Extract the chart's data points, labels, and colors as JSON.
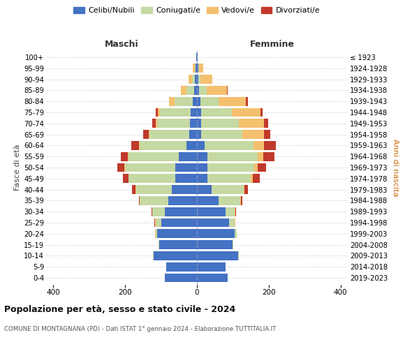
{
  "age_groups": [
    "0-4",
    "5-9",
    "10-14",
    "15-19",
    "20-24",
    "25-29",
    "30-34",
    "35-39",
    "40-44",
    "45-49",
    "50-54",
    "55-59",
    "60-64",
    "65-69",
    "70-74",
    "75-79",
    "80-84",
    "85-89",
    "90-94",
    "95-99",
    "100+"
  ],
  "birth_years": [
    "2019-2023",
    "2014-2018",
    "2009-2013",
    "2004-2008",
    "1999-2003",
    "1994-1998",
    "1989-1993",
    "1984-1988",
    "1979-1983",
    "1974-1978",
    "1969-1973",
    "1964-1968",
    "1959-1963",
    "1954-1958",
    "1949-1953",
    "1944-1948",
    "1939-1943",
    "1934-1938",
    "1929-1933",
    "1924-1928",
    "≤ 1923"
  ],
  "colors": {
    "celibi": "#4472c4",
    "coniugati": "#c5d9a3",
    "vedovi": "#f5c06e",
    "divorziati": "#c0392b"
  },
  "males": {
    "celibi": [
      90,
      85,
      120,
      105,
      110,
      100,
      90,
      80,
      70,
      60,
      60,
      50,
      30,
      22,
      20,
      18,
      12,
      7,
      5,
      3,
      1
    ],
    "coniugati": [
      0,
      0,
      2,
      2,
      5,
      15,
      35,
      80,
      100,
      130,
      140,
      140,
      130,
      110,
      90,
      85,
      50,
      22,
      8,
      3,
      0
    ],
    "vedovi": [
      0,
      0,
      0,
      0,
      1,
      1,
      0,
      0,
      1,
      1,
      2,
      2,
      2,
      3,
      5,
      6,
      16,
      15,
      10,
      5,
      1
    ],
    "divorziati": [
      0,
      0,
      0,
      0,
      0,
      2,
      2,
      2,
      10,
      15,
      20,
      20,
      20,
      15,
      10,
      6,
      0,
      0,
      0,
      0,
      0
    ]
  },
  "females": {
    "nubili": [
      85,
      80,
      115,
      100,
      105,
      90,
      80,
      60,
      40,
      30,
      30,
      30,
      22,
      12,
      12,
      12,
      9,
      6,
      4,
      3,
      1
    ],
    "coniugate": [
      0,
      0,
      2,
      2,
      5,
      15,
      25,
      60,
      90,
      120,
      130,
      140,
      135,
      115,
      105,
      85,
      52,
      22,
      6,
      2,
      0
    ],
    "vedove": [
      0,
      0,
      0,
      0,
      1,
      1,
      1,
      2,
      2,
      5,
      10,
      15,
      30,
      60,
      70,
      80,
      75,
      55,
      32,
      12,
      1
    ],
    "divorziate": [
      0,
      0,
      0,
      0,
      0,
      1,
      2,
      5,
      10,
      20,
      22,
      30,
      32,
      18,
      12,
      5,
      5,
      3,
      0,
      0,
      0
    ]
  },
  "title": "Popolazione per età, sesso e stato civile - 2024",
  "subtitle": "COMUNE DI MONTAGNANA (PD) - Dati ISTAT 1° gennaio 2024 - Elaborazione TUTTITALIA.IT",
  "header_left": "Maschi",
  "header_right": "Femmine",
  "ylabel_left": "Fasce di età",
  "ylabel_right": "Anni di nascita",
  "xlim": 420,
  "legend_labels": [
    "Celibi/Nubili",
    "Coniugati/e",
    "Vedovi/e",
    "Divorziati/e"
  ],
  "bg_color": "#ffffff",
  "grid_color": "#cccccc"
}
